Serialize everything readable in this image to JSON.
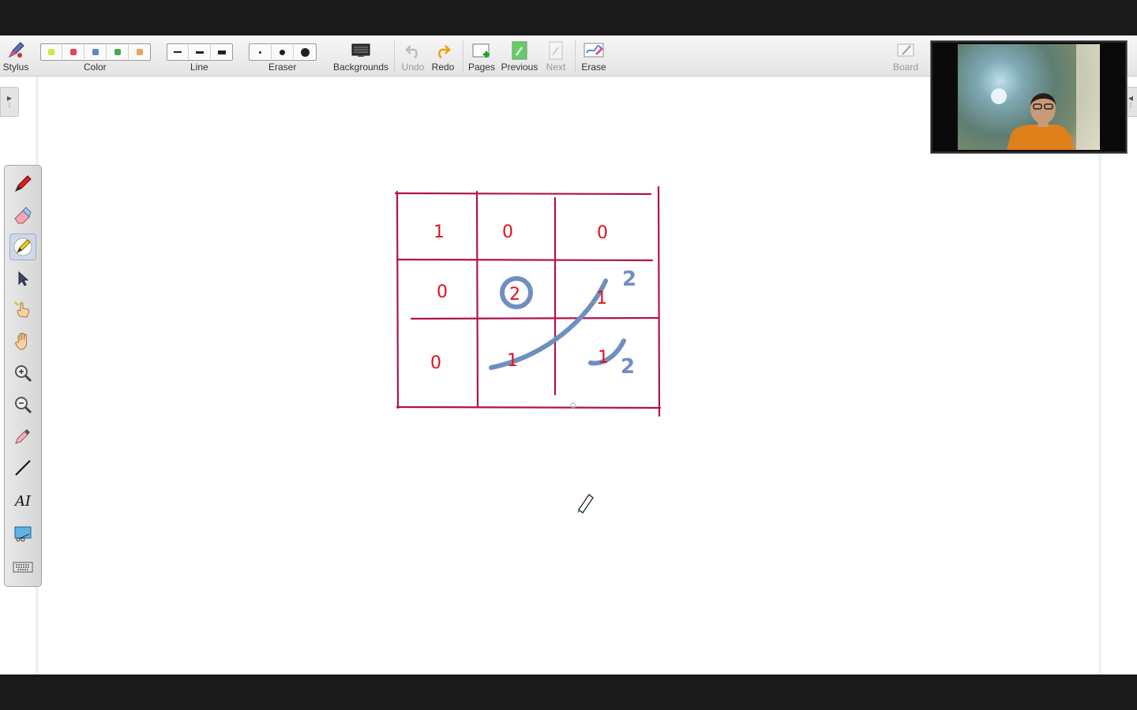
{
  "toolbar": {
    "stylus_label": "Stylus",
    "color_label": "Color",
    "line_label": "Line",
    "eraser_label": "Eraser",
    "backgrounds_label": "Backgrounds",
    "undo_label": "Undo",
    "redo_label": "Redo",
    "pages_label": "Pages",
    "previous_label": "Previous",
    "next_label": "Next",
    "erase_label": "Erase",
    "board_label": "Board",
    "colors": [
      "#c9e84a",
      "#e8455b",
      "#5c86c8",
      "#4aa84a",
      "#e8a45b"
    ]
  },
  "whiteboard": {
    "red_ink": "#e0101e",
    "grid_ink": "#b0124f",
    "blue_ink": "#6f8fc0",
    "cells": {
      "r1c1": "1",
      "r1c2": "0",
      "r1c3": "0",
      "r2c1": "0",
      "r2c2": "2",
      "r2c3": "1",
      "r3c1": "0",
      "r3c2": "1",
      "r3c3": "1"
    },
    "blue_notes": {
      "upper": "2",
      "lower": "2"
    }
  },
  "tool_palette": {
    "items": [
      "pen-icon",
      "eraser-icon",
      "highlighter-icon",
      "select-arrow-icon",
      "pointer-hand-icon",
      "pan-hand-icon",
      "zoom-in-icon",
      "zoom-out-icon",
      "eyedropper-icon",
      "line-icon",
      "text-icon",
      "screen-capture-icon",
      "keyboard-icon"
    ],
    "text_tool_glyph": "AI"
  }
}
